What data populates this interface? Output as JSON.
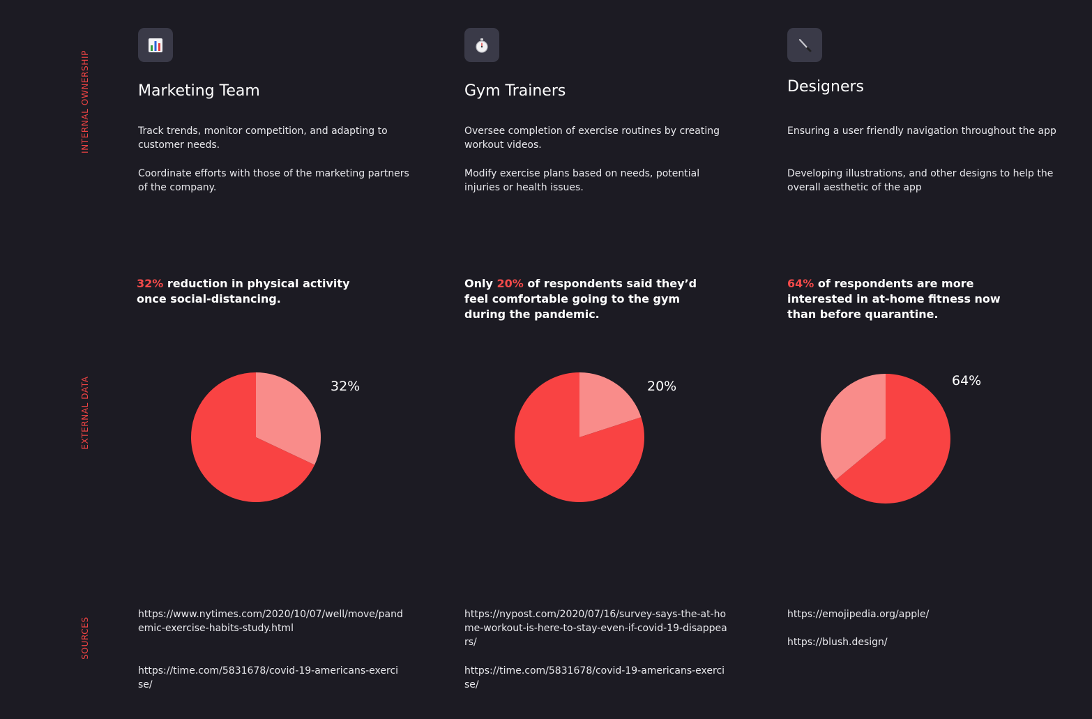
{
  "sections": {
    "internal": "INTERNAL OWNERSHIP",
    "external": "EXTERNAL DATA",
    "sources": "SOURCES"
  },
  "colors": {
    "accent": "#f34a4a",
    "pie_main": "#f94343",
    "pie_light": "#f98c8a",
    "background": "#1c1b23"
  },
  "columns": [
    {
      "icon": "bar-chart-icon",
      "title": "Marketing Team",
      "desc": [
        "Track trends, monitor competition, and adapting to customer needs.",
        "Coordinate efforts with those of the marketing partners of the company."
      ],
      "stat": {
        "highlight": "32%",
        "text": " reduction in physical activity once social-distancing."
      },
      "sources": [
        "https://www.nytimes.com/2020/10/07/well/move/pandemic-exercise-habits-study.html",
        "https://time.com/5831678/covid-19-americans-exercise/"
      ]
    },
    {
      "icon": "stopwatch-icon",
      "title": "Gym Trainers",
      "desc": [
        "Oversee completion of exercise routines by creating workout videos.",
        "Modify exercise plans based on needs, potential injuries or health issues."
      ],
      "stat": {
        "prefix": "Only ",
        "highlight": "20%",
        "text": " of respondents said they’d feel comfortable going to the gym during the pandemic."
      },
      "sources": [
        "https://nypost.com/2020/07/16/survey-says-the-at-home-workout-is-here-to-stay-even-if-covid-19-disappears/",
        "https://time.com/5831678/covid-19-americans-exercise/"
      ]
    },
    {
      "icon": "paintbrush-icon",
      "title": "Designers",
      "desc": [
        "Ensuring a user friendly navigation throughout the app",
        "Developing illustrations, and other designs to help the overall aesthetic of the app"
      ],
      "stat": {
        "highlight": "64%",
        "text": " of respondents are more interested in at-home fitness now than before quarantine."
      },
      "sources": [
        "https://emojipedia.org/apple/",
        "https://blush.design/"
      ]
    }
  ],
  "chart_data": [
    {
      "type": "pie",
      "label": "32%",
      "slices": [
        {
          "value": 32,
          "color": "#f98c8a"
        },
        {
          "value": 68,
          "color": "#f94343"
        }
      ]
    },
    {
      "type": "pie",
      "label": "20%",
      "slices": [
        {
          "value": 20,
          "color": "#f98c8a"
        },
        {
          "value": 80,
          "color": "#f94343"
        }
      ]
    },
    {
      "type": "pie",
      "label": "64%",
      "slices": [
        {
          "value": 64,
          "color": "#f94343"
        },
        {
          "value": 36,
          "color": "#f98c8a"
        }
      ]
    }
  ]
}
